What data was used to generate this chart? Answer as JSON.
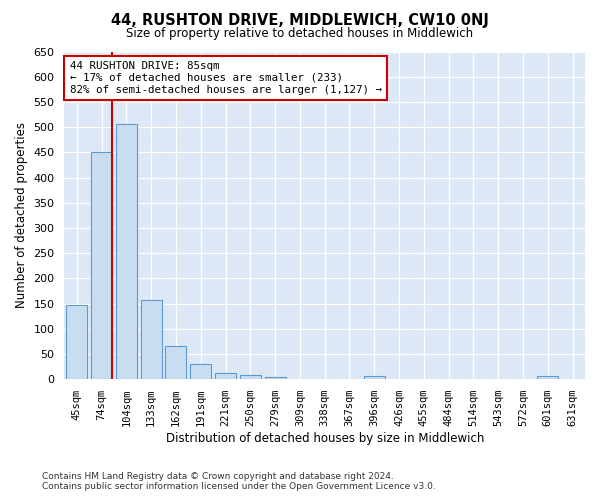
{
  "title": "44, RUSHTON DRIVE, MIDDLEWICH, CW10 0NJ",
  "subtitle": "Size of property relative to detached houses in Middlewich",
  "xlabel": "Distribution of detached houses by size in Middlewich",
  "ylabel": "Number of detached properties",
  "categories": [
    "45sqm",
    "74sqm",
    "104sqm",
    "133sqm",
    "162sqm",
    "191sqm",
    "221sqm",
    "250sqm",
    "279sqm",
    "309sqm",
    "338sqm",
    "367sqm",
    "396sqm",
    "426sqm",
    "455sqm",
    "484sqm",
    "514sqm",
    "543sqm",
    "572sqm",
    "601sqm",
    "631sqm"
  ],
  "values": [
    147,
    450,
    507,
    158,
    65,
    30,
    13,
    8,
    5,
    0,
    0,
    0,
    6,
    0,
    0,
    0,
    0,
    0,
    0,
    6,
    0
  ],
  "bar_color": "#c9ddf0",
  "bar_edge_color": "#5b9bd5",
  "annotation_text": "44 RUSHTON DRIVE: 85sqm\n← 17% of detached houses are smaller (233)\n82% of semi-detached houses are larger (1,127) →",
  "annotation_box_color": "#ffffff",
  "annotation_box_edge": "#cc0000",
  "vline_color": "#cc0000",
  "vline_x": 1.42,
  "ylim": [
    0,
    650
  ],
  "yticks": [
    0,
    50,
    100,
    150,
    200,
    250,
    300,
    350,
    400,
    450,
    500,
    550,
    600,
    650
  ],
  "bg_color": "#ffffff",
  "plot_bg_color": "#dce8f5",
  "grid_color": "#ffffff",
  "footer_line1": "Contains HM Land Registry data © Crown copyright and database right 2024.",
  "footer_line2": "Contains public sector information licensed under the Open Government Licence v3.0."
}
